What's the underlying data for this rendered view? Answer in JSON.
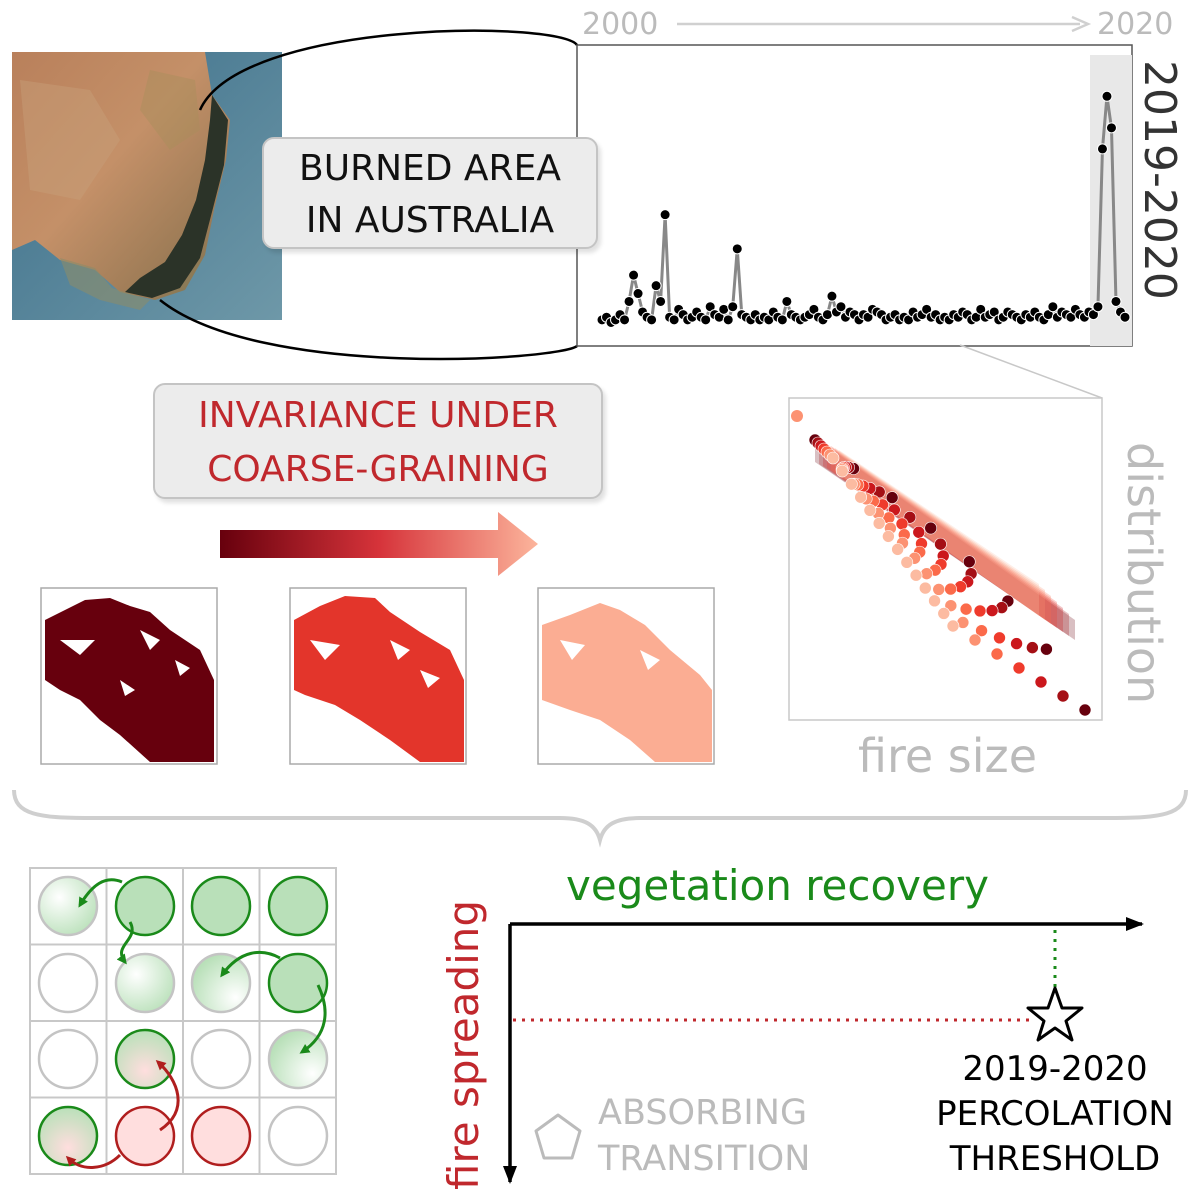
{
  "title_box": {
    "line1": "BURNED AREA",
    "line2": "IN AUSTRALIA"
  },
  "timeline": {
    "start_year": "2000",
    "end_year": "2020",
    "highlight_label": "2019-2020"
  },
  "invariance_box": {
    "line1": "INVARIANCE UNDER",
    "line2": "COARSE-GRAINING"
  },
  "distribution_plot": {
    "xlabel": "fire size",
    "ylabel": "distribution"
  },
  "phase_diagram": {
    "x_axis_label": "vegetation recovery",
    "y_axis_label": "fire spreading",
    "absorbing_label_1": "ABSORBING",
    "absorbing_label_2": "TRANSITION",
    "threshold_label_1": "2019-2020",
    "threshold_label_2": "PERCOLATION",
    "threshold_label_3": "THRESHOLD"
  },
  "colors": {
    "green": "#1a8a1a",
    "red": "#c0282d",
    "dark_red": "#67000d",
    "mid_red": "#e3352b",
    "light_red": "#fbad93",
    "gray": "#bdbdbd",
    "text_gray": "#bbbbbb"
  },
  "chart_data": {
    "type": "line",
    "x_range": [
      "2000",
      "2020"
    ],
    "peaks_relative": [
      0.05,
      0.06,
      0.04,
      0.05,
      0.07,
      0.05,
      0.12,
      0.22,
      0.15,
      0.08,
      0.06,
      0.05,
      0.18,
      0.12,
      0.45,
      0.06,
      0.05,
      0.09,
      0.07,
      0.05,
      0.06,
      0.08,
      0.06,
      0.05,
      0.1,
      0.07,
      0.06,
      0.09,
      0.05,
      0.1,
      0.32,
      0.07,
      0.06,
      0.05,
      0.07,
      0.05,
      0.06,
      0.05,
      0.08,
      0.06,
      0.05,
      0.12,
      0.07,
      0.06,
      0.05,
      0.06,
      0.07,
      0.09,
      0.06,
      0.05,
      0.07,
      0.14,
      0.08,
      0.1,
      0.06,
      0.08,
      0.07,
      0.05,
      0.07,
      0.06,
      0.09,
      0.08,
      0.07,
      0.05,
      0.06,
      0.07,
      0.05,
      0.06,
      0.05,
      0.08,
      0.06,
      0.07,
      0.09,
      0.06,
      0.07,
      0.05,
      0.06,
      0.05,
      0.07,
      0.06,
      0.08,
      0.07,
      0.05,
      0.06,
      0.09,
      0.06,
      0.07,
      0.08,
      0.05,
      0.06,
      0.08,
      0.07,
      0.06,
      0.05,
      0.07,
      0.06,
      0.08,
      0.06,
      0.05,
      0.07,
      0.1,
      0.06,
      0.08,
      0.07,
      0.06,
      0.09,
      0.07,
      0.06,
      0.08,
      0.07,
      0.1,
      0.7,
      0.9,
      0.78,
      0.12,
      0.08,
      0.06
    ]
  }
}
